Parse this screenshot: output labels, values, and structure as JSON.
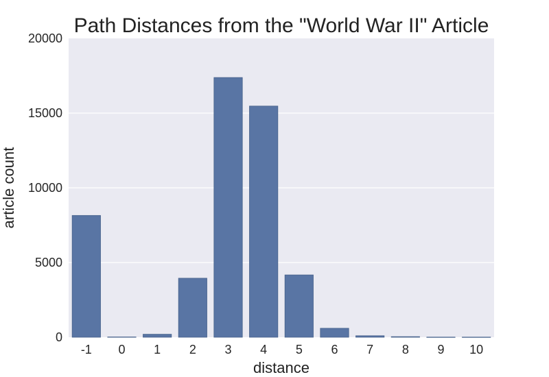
{
  "chart_data": {
    "type": "bar",
    "title": "Path Distances from the \"World War II\" Article",
    "xlabel": "distance",
    "ylabel": "article count",
    "categories": [
      "-1",
      "0",
      "1",
      "2",
      "3",
      "4",
      "5",
      "6",
      "7",
      "8",
      "9",
      "10"
    ],
    "values": [
      8150,
      20,
      200,
      3950,
      17380,
      15470,
      4170,
      600,
      100,
      40,
      10,
      10
    ],
    "ylim": [
      0,
      20000
    ],
    "yticks": [
      0,
      5000,
      10000,
      15000,
      20000
    ],
    "grid": true,
    "legend": "none"
  },
  "colors": {
    "bar": "#5975A4",
    "bar_edge": "#46618a",
    "plot_background": "#EAEAF2",
    "grid": "#FFFFFF",
    "text": "#222222"
  }
}
